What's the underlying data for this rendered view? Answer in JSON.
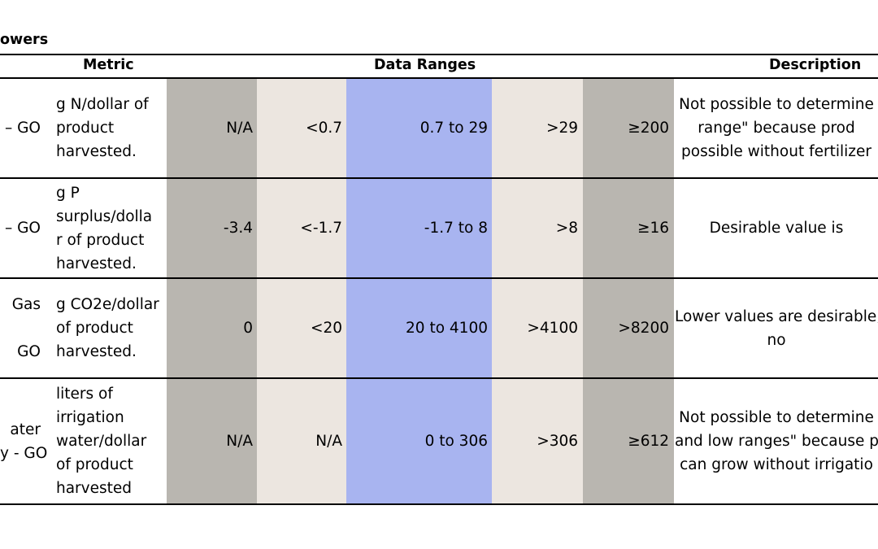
{
  "caption": "owers",
  "headers": {
    "metric": "Metric",
    "ranges": "Data Ranges",
    "description": "Description"
  },
  "colors": {
    "dark_gray": "#b9b6b0",
    "light_beige": "#ece6e0",
    "blue": "#a8b4f0",
    "rule": "#000000"
  },
  "rows": [
    {
      "name_lines": [
        "",
        "– GO",
        ""
      ],
      "unit_lines": [
        "g N/dollar of",
        "product",
        "harvested."
      ],
      "ranges": [
        "N/A",
        "<0.7",
        "0.7 to 29",
        ">29",
        "≥200"
      ],
      "desc_lines": [
        "Not possible to determine",
        "range\" because prod",
        "possible without fertilizer"
      ]
    },
    {
      "name_lines": [
        "– GO"
      ],
      "unit_lines": [
        "g P",
        "surplus/dolla",
        "r of product",
        "harvested."
      ],
      "ranges": [
        "-3.4",
        "<-1.7",
        "-1.7 to 8",
        ">8",
        "≥16"
      ],
      "desc_lines": [
        "Desirable value is"
      ]
    },
    {
      "name_lines": [
        "Gas",
        "",
        "GO"
      ],
      "unit_lines": [
        "g CO2e/dollar",
        "of product",
        "harvested."
      ],
      "ranges": [
        "0",
        "<20",
        "20 to 4100",
        ">4100",
        ">8200"
      ],
      "desc_lines": [
        "Lower values are desirable,",
        "no"
      ]
    },
    {
      "name_lines": [
        "ater",
        "y - GO"
      ],
      "unit_lines": [
        "liters of",
        "irrigation",
        "water/dollar",
        "of product",
        "harvested"
      ],
      "ranges": [
        "N/A",
        "N/A",
        "0 to 306",
        ">306",
        "≥612"
      ],
      "desc_lines": [
        "Not possible to determine",
        "and low ranges\" because p",
        "can grow without irrigatio"
      ]
    }
  ]
}
